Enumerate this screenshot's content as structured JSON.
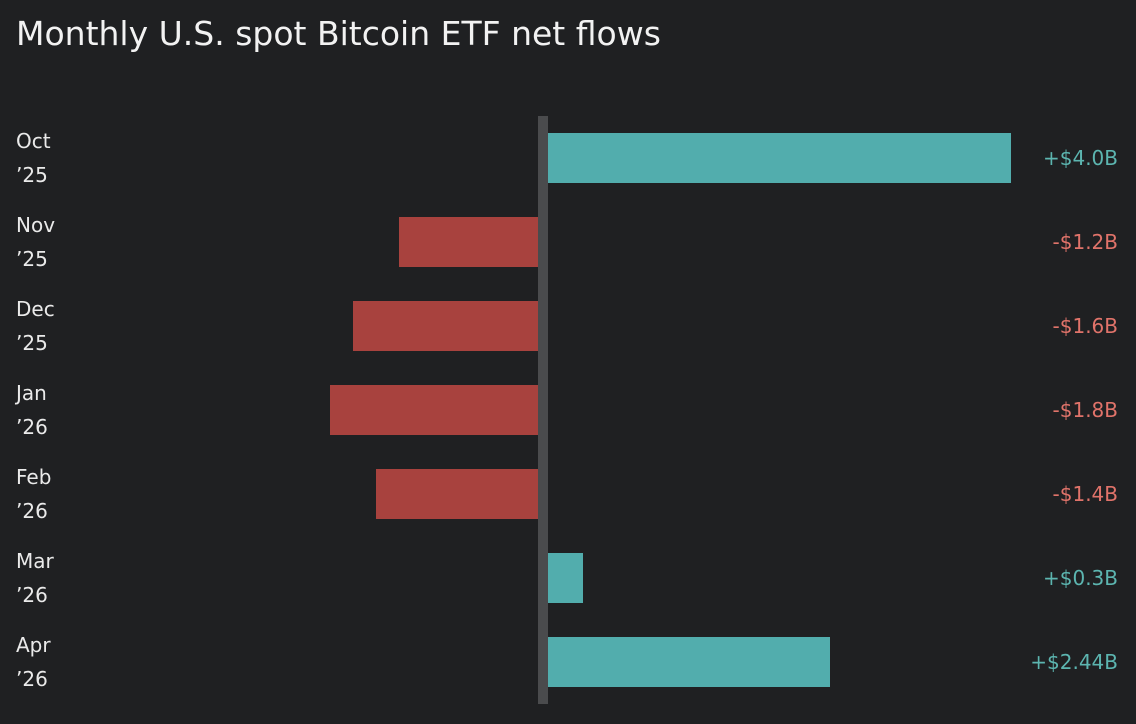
{
  "chart_data": {
    "type": "bar",
    "orientation": "horizontal",
    "title": "Monthly U.S. spot Bitcoin ETF net flows",
    "categories": [
      "Oct\n’25",
      "Nov\n’25",
      "Dec\n’25",
      "Jan\n’26",
      "Feb\n’26",
      "Mar\n’26",
      "Apr\n’26"
    ],
    "values": [
      4.0,
      -1.2,
      -1.6,
      -1.8,
      -1.4,
      0.3,
      2.44
    ],
    "value_labels": [
      "+$4.0B",
      "-$1.2B",
      "-$1.6B",
      "-$1.8B",
      "-$1.4B",
      "+$0.3B",
      "+$2.44B"
    ],
    "positive_color": "#52adad",
    "negative_color": "#a8423e",
    "positive_label_color": "#5cb5b0",
    "negative_label_color": "#e0736a"
  }
}
